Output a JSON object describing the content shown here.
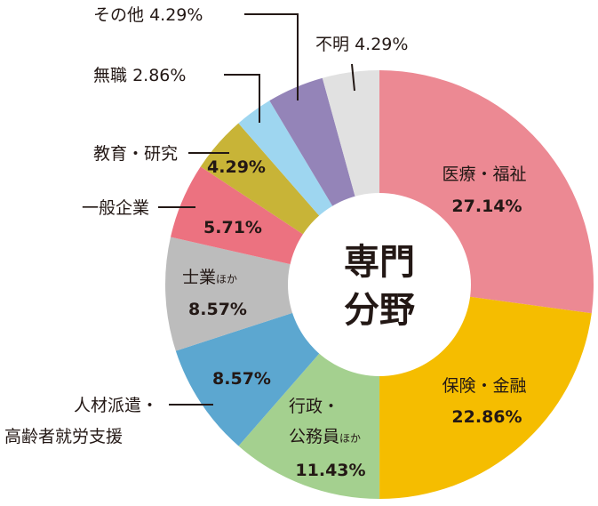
{
  "chart_data": {
    "type": "pie",
    "variant": "donut",
    "center_label": [
      "専門",
      "分野"
    ],
    "start": "top",
    "direction": "clockwise",
    "slices": [
      {
        "label": "医療・福祉",
        "value": 27.14,
        "display": "27.14%",
        "color": "#ec8993"
      },
      {
        "label": "保険・金融",
        "value": 22.86,
        "display": "22.86%",
        "color": "#f5bd00"
      },
      {
        "label_lines": [
          "行政・",
          "公務員"
        ],
        "suffix": "ほか",
        "value": 11.43,
        "display": "11.43%",
        "color": "#a4d08f"
      },
      {
        "label_lines": [
          "人材派遣・",
          "高齢者就労支援"
        ],
        "value": 8.57,
        "display": "8.57%",
        "color": "#5ca7d0"
      },
      {
        "label": "士業",
        "suffix": "ほか",
        "value": 8.57,
        "display": "8.57%",
        "color": "#bcbcbc"
      },
      {
        "label": "一般企業",
        "value": 5.71,
        "display": "5.71%",
        "color": "#ec7280"
      },
      {
        "label": "教育・研究",
        "value": 4.29,
        "display": "4.29%",
        "color": "#c8b437"
      },
      {
        "label": "無職",
        "value": 2.86,
        "display": "2.86%",
        "color": "#9ed6f0"
      },
      {
        "label": "その他",
        "value": 4.29,
        "display": "4.29%",
        "color": "#9484b8"
      },
      {
        "label": "不明",
        "value": 4.29,
        "display": "4.29%",
        "color": "#e1e1e1"
      }
    ]
  }
}
